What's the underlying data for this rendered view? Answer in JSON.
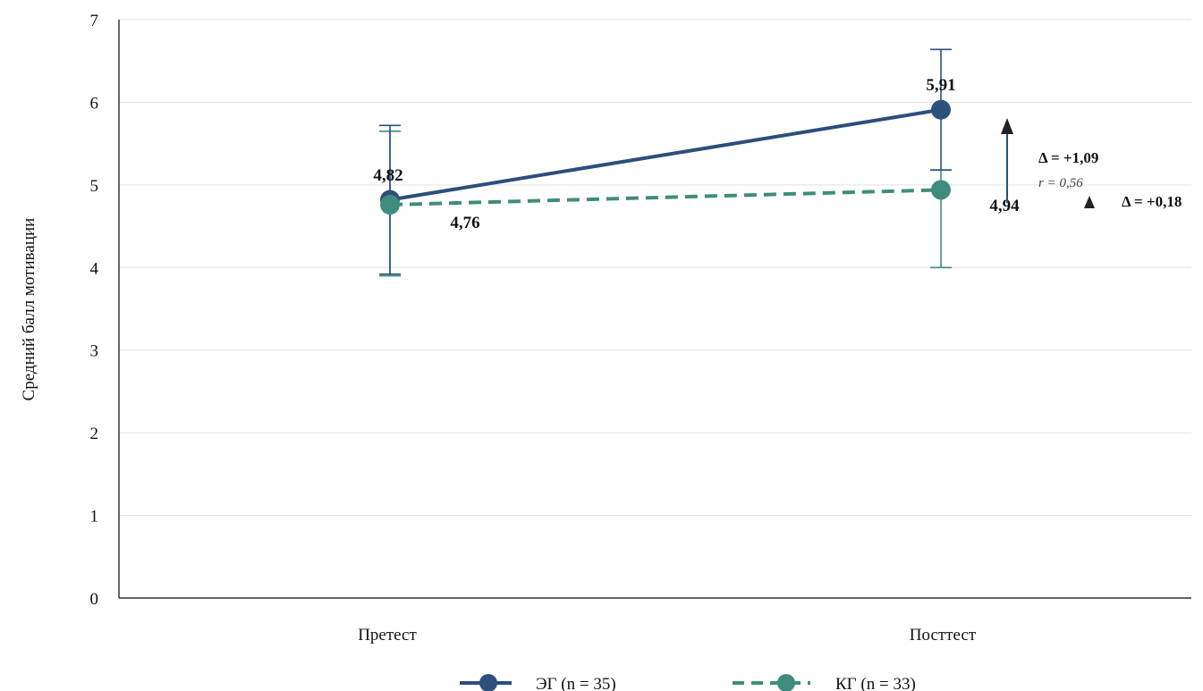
{
  "chart_data": {
    "type": "line",
    "categories": [
      "Претест",
      "Посттест"
    ],
    "ylabel": "Средний балл мотивации",
    "ylim": [
      0,
      7
    ],
    "yticks": [
      "0",
      "1",
      "2",
      "3",
      "4",
      "5",
      "6",
      "7"
    ],
    "grid": "horizontal",
    "legend_position": "bottom",
    "series": [
      {
        "name": "ЭГ (n = 35)",
        "values": [
          4.82,
          5.91
        ],
        "error_low": [
          3.92,
          5.18
        ],
        "error_high": [
          5.72,
          6.64
        ],
        "labels": [
          "4,82",
          "5,91"
        ],
        "color": "#2c4f7c",
        "line_style": "solid"
      },
      {
        "name": "КГ (n = 33)",
        "values": [
          4.76,
          4.94
        ],
        "error_low": [
          3.9,
          4.0
        ],
        "error_high": [
          5.65,
          5.18
        ],
        "labels": [
          "4,76",
          "4,94"
        ],
        "color": "#3f8c7d",
        "line_style": "dashed"
      }
    ],
    "annotations": {
      "eg_delta": "Δ = +1,09",
      "eg_effect": "r = 0,56",
      "kg_delta": "Δ = +0,18"
    }
  }
}
